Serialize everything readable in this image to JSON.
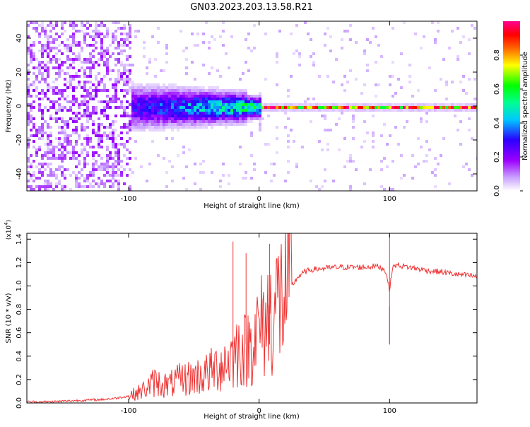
{
  "figure": {
    "title": "GN03.2023.203.13.58.R21"
  },
  "colorbar": {
    "label": "Normalized spectral amplitude",
    "ticks": [
      "0.0",
      "0.2",
      "0.4",
      "0.6",
      "0.8"
    ]
  },
  "chart_data": [
    {
      "type": "heatmap",
      "title": "",
      "xlabel": "Height of straight line (km)",
      "ylabel": "Frequency (Hz)",
      "xlim": [
        -178,
        167
      ],
      "ylim": [
        -50,
        50
      ],
      "x_ticks": [
        -100,
        0,
        100
      ],
      "x_tick_labels": [
        "-100",
        "0",
        "100"
      ],
      "y_ticks": [
        -40,
        -20,
        0,
        20,
        40
      ],
      "y_tick_labels": [
        "-40",
        "-20",
        "0",
        "20",
        "40"
      ],
      "zlim": [
        0,
        1
      ],
      "colormap": [
        "#ffffff",
        "#9b00ff",
        "#0000ff",
        "#00ffff",
        "#00ff00",
        "#ffff00",
        "#ff0000",
        "#ff0090"
      ],
      "regions": [
        {
          "x_range": [
            -178,
            -100
          ],
          "f_spread": 48,
          "description_level": 0.15
        },
        {
          "x_range": [
            -100,
            -10
          ],
          "f_spread": 10,
          "description_level": 0.45
        },
        {
          "x_range": [
            -5,
            160
          ],
          "f_spread": 1.5,
          "description_level": 0.95
        }
      ]
    },
    {
      "type": "line",
      "title": "",
      "xlabel": "Height of straight line (km)",
      "ylabel": "SNR (10 * v/v)",
      "y_multiplier": "(x10",
      "y_multiplier_exp": "4",
      "y_multiplier_close": ")",
      "xlim": [
        -178,
        167
      ],
      "ylim": [
        0,
        1.45
      ],
      "x_ticks": [
        -100,
        0,
        100
      ],
      "x_tick_labels": [
        "-100",
        "0",
        "100"
      ],
      "y_ticks": [
        0.0,
        0.2,
        0.4,
        0.6,
        0.8,
        1.0,
        1.2,
        1.4
      ],
      "y_tick_labels": [
        "0.0",
        "0.2",
        "0.4",
        "0.6",
        "0.8",
        "1.0",
        "1.2",
        "1.4"
      ],
      "series": [
        {
          "color": "#ee3333",
          "x": [
            -178,
            -160,
            -140,
            -120,
            -110,
            -100,
            -90,
            -80,
            -70,
            -60,
            -50,
            -40,
            -30,
            -20,
            -15,
            -10,
            -5,
            0,
            5,
            10,
            15,
            20,
            25,
            30,
            35,
            40,
            50,
            60,
            70,
            80,
            90,
            95,
            98,
            100,
            102,
            105,
            110,
            120,
            130,
            140,
            150,
            160,
            167
          ],
          "y": [
            0.01,
            0.01,
            0.02,
            0.03,
            0.04,
            0.06,
            0.1,
            0.18,
            0.15,
            0.2,
            0.22,
            0.25,
            0.32,
            0.4,
            0.48,
            0.45,
            0.55,
            0.62,
            0.7,
            0.78,
            0.87,
            0.93,
            1.0,
            1.08,
            1.12,
            1.14,
            1.15,
            1.16,
            1.16,
            1.16,
            1.17,
            1.15,
            1.1,
            0.95,
            1.15,
            1.18,
            1.17,
            1.15,
            1.13,
            1.12,
            1.1,
            1.09,
            1.08
          ]
        }
      ],
      "spikes": [
        {
          "x": -20,
          "y": 1.38
        },
        {
          "x": -10,
          "y": 1.28
        },
        {
          "x": 8,
          "y": 1.36
        },
        {
          "x": 100,
          "y": 1.45
        },
        {
          "x": 100,
          "y": 0.82
        }
      ]
    }
  ]
}
